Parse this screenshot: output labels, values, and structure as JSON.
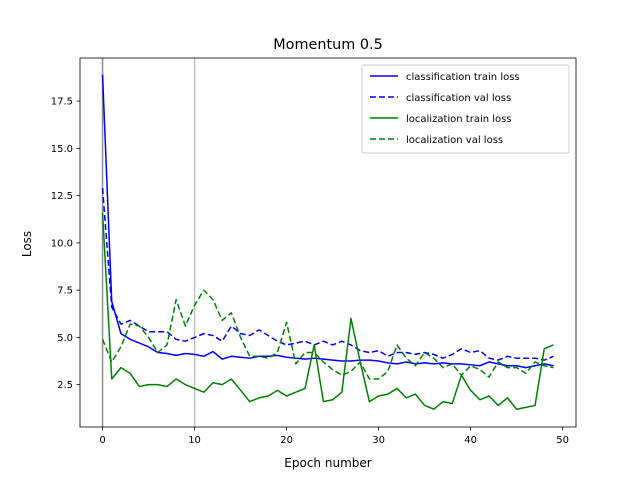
{
  "chart_data": {
    "type": "line",
    "title": "Momentum 0.5",
    "xlabel": "Epoch number",
    "ylabel": "Loss",
    "xlim": [
      -2.45,
      51.45
    ],
    "ylim": [
      0.26,
      19.78
    ],
    "x_ticks": [
      0,
      10,
      20,
      30,
      40,
      50
    ],
    "y_ticks": [
      2.5,
      5.0,
      7.5,
      10.0,
      12.5,
      15.0,
      17.5
    ],
    "vertical_lines": [
      0,
      10
    ],
    "legend_position": "top-right",
    "grid": false,
    "x": [
      0,
      1,
      2,
      3,
      4,
      5,
      6,
      7,
      8,
      9,
      10,
      11,
      12,
      13,
      14,
      15,
      16,
      17,
      18,
      19,
      20,
      21,
      22,
      23,
      24,
      25,
      26,
      27,
      28,
      29,
      30,
      31,
      32,
      33,
      34,
      35,
      36,
      37,
      38,
      39,
      40,
      41,
      42,
      43,
      44,
      45,
      46,
      47,
      48,
      49
    ],
    "series": [
      {
        "name": "classification train loss",
        "color": "#0000ff",
        "dash": "solid",
        "values": [
          18.9,
          6.9,
          5.2,
          4.9,
          4.7,
          4.5,
          4.2,
          4.15,
          4.05,
          4.15,
          4.1,
          4.0,
          4.25,
          3.85,
          4.0,
          3.95,
          3.9,
          4.0,
          4.0,
          4.05,
          3.95,
          3.9,
          3.85,
          3.9,
          3.85,
          3.8,
          3.75,
          3.75,
          3.8,
          3.8,
          3.75,
          3.65,
          3.6,
          3.7,
          3.6,
          3.65,
          3.6,
          3.65,
          3.6,
          3.6,
          3.55,
          3.5,
          3.7,
          3.6,
          3.5,
          3.5,
          3.4,
          3.5,
          3.6,
          3.5
        ]
      },
      {
        "name": "classification val loss",
        "color": "#0000ff",
        "dash": "dashed",
        "values": [
          12.9,
          6.6,
          5.7,
          5.9,
          5.6,
          5.3,
          5.3,
          5.3,
          4.9,
          4.8,
          5.0,
          5.2,
          5.1,
          4.8,
          5.6,
          5.2,
          5.1,
          5.4,
          5.1,
          4.8,
          4.6,
          4.7,
          4.8,
          4.6,
          4.8,
          4.6,
          4.8,
          4.6,
          4.3,
          4.2,
          4.3,
          4.0,
          4.2,
          4.2,
          4.1,
          4.2,
          4.1,
          3.9,
          4.1,
          4.4,
          4.2,
          4.3,
          3.9,
          3.8,
          4.0,
          3.9,
          3.9,
          3.9,
          3.8,
          4.0
        ]
      },
      {
        "name": "localization train loss",
        "color": "#008000",
        "dash": "solid",
        "values": [
          11.6,
          2.8,
          3.4,
          3.1,
          2.4,
          2.5,
          2.5,
          2.4,
          2.8,
          2.5,
          2.3,
          2.1,
          2.6,
          2.5,
          2.8,
          2.2,
          1.6,
          1.8,
          1.9,
          2.2,
          1.9,
          2.1,
          2.3,
          4.6,
          1.6,
          1.7,
          2.1,
          6.0,
          3.7,
          1.6,
          1.9,
          2.0,
          2.3,
          1.8,
          2.0,
          1.4,
          1.2,
          1.6,
          1.5,
          3.0,
          2.2,
          1.7,
          1.9,
          1.4,
          1.8,
          1.2,
          1.3,
          1.4,
          4.4,
          4.6
        ]
      },
      {
        "name": "localization val loss",
        "color": "#008000",
        "dash": "dashed",
        "values": [
          4.9,
          3.7,
          4.5,
          5.7,
          5.6,
          5.0,
          4.2,
          4.6,
          7.0,
          5.6,
          6.7,
          7.5,
          7.0,
          5.9,
          6.3,
          5.0,
          4.0,
          4.0,
          3.9,
          4.2,
          5.8,
          3.6,
          4.2,
          4.2,
          3.7,
          3.3,
          3.0,
          3.2,
          3.7,
          2.8,
          2.8,
          3.2,
          4.6,
          3.9,
          3.5,
          4.2,
          3.9,
          3.4,
          3.6,
          3.0,
          3.5,
          3.3,
          2.9,
          3.7,
          3.4,
          3.4,
          3.1,
          3.7,
          3.5,
          3.4
        ]
      }
    ]
  }
}
